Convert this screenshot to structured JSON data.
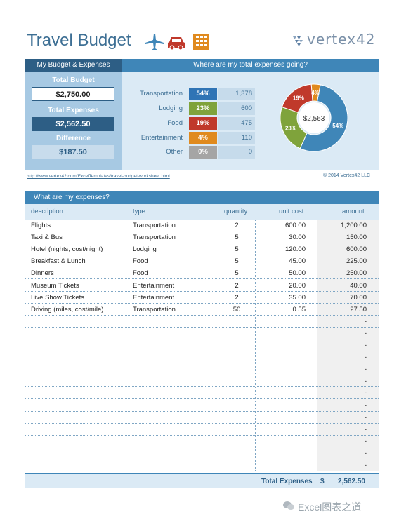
{
  "header": {
    "title": "Travel Budget",
    "brand": "vertex42",
    "icons": [
      "airplane-icon",
      "car-icon",
      "building-icon"
    ]
  },
  "summary": {
    "section_title": "My Budget & Expenses",
    "total_budget_label": "Total Budget",
    "total_budget": "$2,750.00",
    "total_expenses_label": "Total Expenses",
    "total_expenses": "$2,562.50",
    "difference_label": "Difference",
    "difference": "$187.50"
  },
  "breakdown": {
    "title": "Where are my total expenses going?",
    "categories": [
      {
        "name": "Transportation",
        "pct": "54%",
        "amount": "1,378",
        "color": "#2f74b5"
      },
      {
        "name": "Lodging",
        "pct": "23%",
        "amount": "600",
        "color": "#7fa33b"
      },
      {
        "name": "Food",
        "pct": "19%",
        "amount": "475",
        "color": "#c0392b"
      },
      {
        "name": "Entertainment",
        "pct": "4%",
        "amount": "110",
        "color": "#e08a1e"
      },
      {
        "name": "Other",
        "pct": "0%",
        "amount": "0",
        "color": "#a5a5a5"
      }
    ]
  },
  "chart_data": {
    "type": "pie",
    "center_label": "$2,563",
    "categories": [
      "Transportation",
      "Lodging",
      "Food",
      "Entertainment",
      "Other"
    ],
    "values": [
      1378,
      600,
      475,
      110,
      0
    ],
    "labels": [
      "54%",
      "23%",
      "19%",
      "4%",
      ""
    ],
    "colors": [
      "#3f86b8",
      "#7fa33b",
      "#c0392b",
      "#e08a1e",
      "#a5a5a5"
    ]
  },
  "links": {
    "url": "http://www.vertex42.com/ExcelTemplates/travel-budget-worksheet.html",
    "copyright": "© 2014 Vertex42 LLC"
  },
  "expenses": {
    "title": "What are my expenses?",
    "columns": [
      "description",
      "type",
      "quantity",
      "unit cost",
      "amount"
    ],
    "rows": [
      {
        "description": "Flights",
        "type": "Transportation",
        "quantity": "2",
        "unit": "600.00",
        "amount": "1,200.00"
      },
      {
        "description": "Taxi & Bus",
        "type": "Transportation",
        "quantity": "5",
        "unit": "30.00",
        "amount": "150.00"
      },
      {
        "description": "Hotel (nights, cost/night)",
        "type": "Lodging",
        "quantity": "5",
        "unit": "120.00",
        "amount": "600.00"
      },
      {
        "description": "Breakfast & Lunch",
        "type": "Food",
        "quantity": "5",
        "unit": "45.00",
        "amount": "225.00"
      },
      {
        "description": "Dinners",
        "type": "Food",
        "quantity": "5",
        "unit": "50.00",
        "amount": "250.00"
      },
      {
        "description": "Museum Tickets",
        "type": "Entertainment",
        "quantity": "2",
        "unit": "20.00",
        "amount": "40.00"
      },
      {
        "description": "Live Show Tickets",
        "type": "Entertainment",
        "quantity": "2",
        "unit": "35.00",
        "amount": "70.00"
      },
      {
        "description": "Driving (miles, cost/mile)",
        "type": "Transportation",
        "quantity": "50",
        "unit": "0.55",
        "amount": "27.50"
      },
      {
        "description": "",
        "type": "",
        "quantity": "",
        "unit": "",
        "amount": "-"
      },
      {
        "description": "",
        "type": "",
        "quantity": "",
        "unit": "",
        "amount": "-"
      },
      {
        "description": "",
        "type": "",
        "quantity": "",
        "unit": "",
        "amount": "-"
      },
      {
        "description": "",
        "type": "",
        "quantity": "",
        "unit": "",
        "amount": "-"
      },
      {
        "description": "",
        "type": "",
        "quantity": "",
        "unit": "",
        "amount": "-"
      },
      {
        "description": "",
        "type": "",
        "quantity": "",
        "unit": "",
        "amount": "-"
      },
      {
        "description": "",
        "type": "",
        "quantity": "",
        "unit": "",
        "amount": "-"
      },
      {
        "description": "",
        "type": "",
        "quantity": "",
        "unit": "",
        "amount": "-"
      },
      {
        "description": "",
        "type": "",
        "quantity": "",
        "unit": "",
        "amount": "-"
      },
      {
        "description": "",
        "type": "",
        "quantity": "",
        "unit": "",
        "amount": "-"
      },
      {
        "description": "",
        "type": "",
        "quantity": "",
        "unit": "",
        "amount": "-"
      },
      {
        "description": "",
        "type": "",
        "quantity": "",
        "unit": "",
        "amount": "-"
      },
      {
        "description": "",
        "type": "",
        "quantity": "",
        "unit": "",
        "amount": "-"
      },
      {
        "description": "",
        "type": "",
        "quantity": "",
        "unit": "",
        "amount": "-"
      }
    ],
    "total_label": "Total Expenses",
    "total_currency": "$",
    "total_value": "2,562.50"
  },
  "watermark": "Excel图表之道"
}
